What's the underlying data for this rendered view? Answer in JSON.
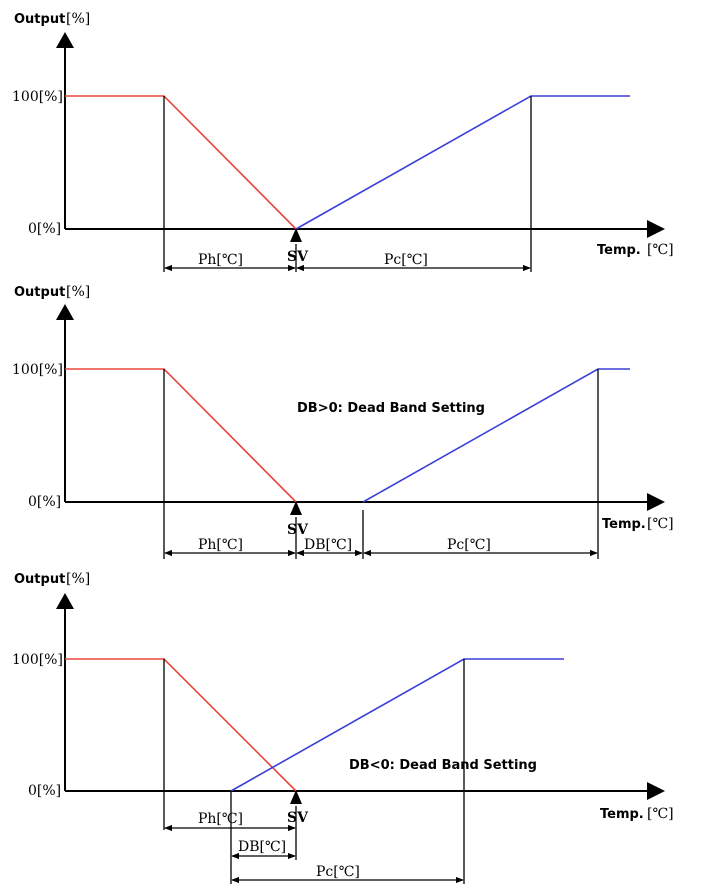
{
  "panels": [
    {
      "output_label": "Output",
      "output_unit": "[%]",
      "y_high": "100[%]",
      "y_low": "0[%]",
      "temp_label": "Temp.",
      "temp_unit": "[℃]",
      "ph_label": "Ph[℃]",
      "pc_label": "Pc[℃]",
      "sv_label": "SV",
      "db_label": "",
      "note": ""
    },
    {
      "output_label": "Output",
      "output_unit": "[%]",
      "y_high": "100[%]",
      "y_low": "0[%]",
      "temp_label": "Temp.",
      "temp_unit": "[℃]",
      "ph_label": "Ph[℃]",
      "pc_label": "Pc[℃]",
      "sv_label": "SV",
      "db_label": "DB[℃]",
      "note": "DB>0: Dead Band Setting"
    },
    {
      "output_label": "Output",
      "output_unit": "[%]",
      "y_high": "100[%]",
      "y_low": "0[%]",
      "temp_label": "Temp.",
      "temp_unit": "[℃]",
      "ph_label": "Ph[℃]",
      "pc_label": "Pc[℃]",
      "sv_label": "SV",
      "db_label": "DB[℃]",
      "note": "DB<0: Dead Band Setting"
    }
  ],
  "colors": {
    "heating": "#e8473d",
    "cooling": "#3b3fd8",
    "axis": "#000000"
  }
}
